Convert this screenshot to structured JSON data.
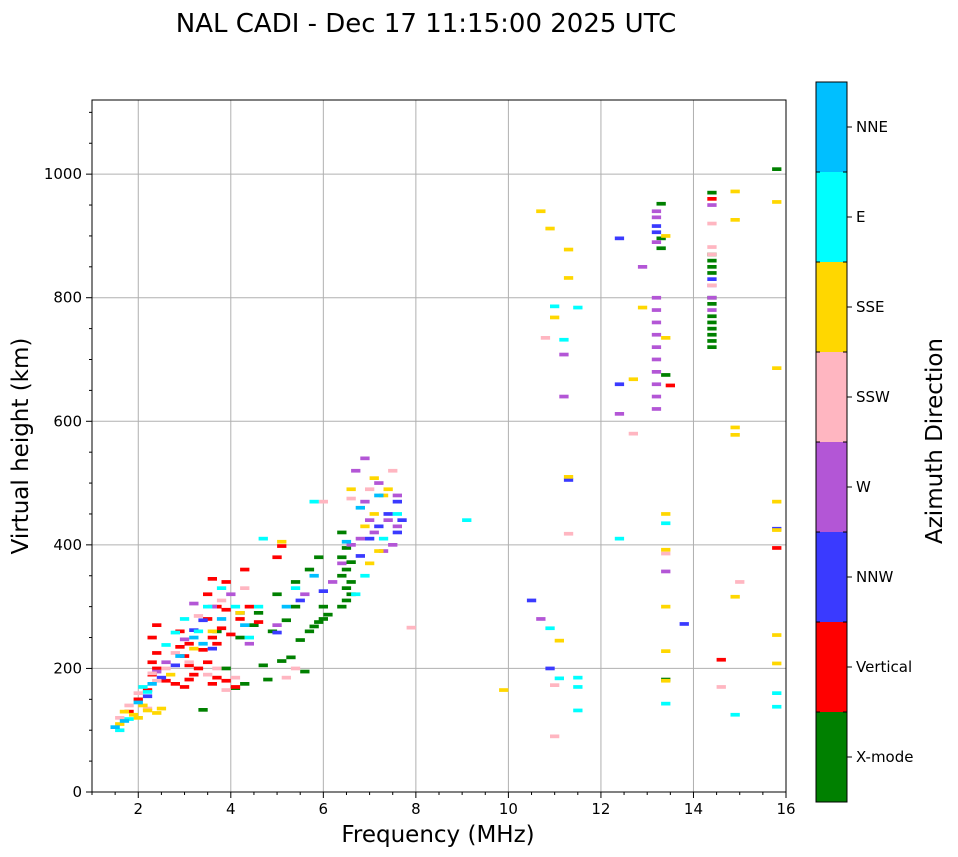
{
  "chart_data": {
    "type": "scatter",
    "title": "NAL CADI - Dec 17 11:15:00 2025 UTC",
    "xlabel": "Frequency (MHz)",
    "ylabel": "Virtual height (km)",
    "xlim": [
      1,
      16
    ],
    "ylim": [
      0,
      1120
    ],
    "xticks": [
      2,
      4,
      6,
      8,
      10,
      12,
      14,
      16
    ],
    "yticks": [
      0,
      200,
      400,
      600,
      800,
      1000
    ],
    "grid": true,
    "colorbar": {
      "label": "Azimuth Direction",
      "categories": [
        "X-mode",
        "Vertical",
        "NNW",
        "W",
        "SSW",
        "SSE",
        "E",
        "NNE"
      ],
      "colors": [
        "#008000",
        "#ff0000",
        "#3a3aff",
        "#b356d6",
        "#ffb6c1",
        "#ffd700",
        "#00ffff",
        "#00bfff"
      ]
    },
    "cell_size": {
      "frequency_mhz": 0.2,
      "height_km": 6
    },
    "series": [
      {
        "name": "X-mode",
        "points": [
          [
            3.4,
            133
          ],
          [
            4.8,
            182
          ],
          [
            5.6,
            195
          ],
          [
            5.3,
            218
          ],
          [
            5.1,
            212
          ],
          [
            4.7,
            205
          ],
          [
            5.5,
            246
          ],
          [
            5.7,
            260
          ],
          [
            5.8,
            268
          ],
          [
            5.9,
            275
          ],
          [
            6.0,
            280
          ],
          [
            6.1,
            287
          ],
          [
            5.4,
            300
          ],
          [
            5.2,
            278
          ],
          [
            4.9,
            260
          ],
          [
            6.4,
            300
          ],
          [
            6.5,
            310
          ],
          [
            6.6,
            320
          ],
          [
            6.5,
            330
          ],
          [
            6.6,
            340
          ],
          [
            6.4,
            350
          ],
          [
            6.5,
            360
          ],
          [
            6.6,
            372
          ],
          [
            6.4,
            380
          ],
          [
            6.5,
            395
          ],
          [
            6.4,
            420
          ],
          [
            4.3,
            175
          ],
          [
            4.1,
            168
          ],
          [
            3.9,
            200
          ],
          [
            4.2,
            250
          ],
          [
            4.5,
            270
          ],
          [
            4.6,
            290
          ],
          [
            5.0,
            320
          ],
          [
            5.4,
            340
          ],
          [
            5.7,
            360
          ],
          [
            5.9,
            380
          ],
          [
            6.0,
            300
          ],
          [
            3.7,
            260
          ],
          [
            13.3,
            952
          ],
          [
            13.3,
            896
          ],
          [
            13.3,
            880
          ],
          [
            13.4,
            675
          ],
          [
            13.4,
            182
          ],
          [
            14.4,
            970
          ],
          [
            14.4,
            870
          ],
          [
            14.4,
            860
          ],
          [
            14.4,
            850
          ],
          [
            14.4,
            840
          ],
          [
            14.4,
            800
          ],
          [
            14.4,
            790
          ],
          [
            14.4,
            770
          ],
          [
            14.4,
            760
          ],
          [
            14.4,
            750
          ],
          [
            14.4,
            740
          ],
          [
            14.4,
            730
          ],
          [
            14.4,
            720
          ],
          [
            15.8,
            1008
          ]
        ]
      },
      {
        "name": "Vertical",
        "points": [
          [
            1.8,
            130
          ],
          [
            2.0,
            150
          ],
          [
            2.2,
            165
          ],
          [
            2.3,
            190
          ],
          [
            2.4,
            200
          ],
          [
            2.3,
            210
          ],
          [
            2.4,
            225
          ],
          [
            2.3,
            250
          ],
          [
            2.4,
            270
          ],
          [
            2.6,
            180
          ],
          [
            2.8,
            175
          ],
          [
            3.0,
            170
          ],
          [
            3.1,
            182
          ],
          [
            3.2,
            190
          ],
          [
            3.1,
            205
          ],
          [
            3.0,
            220
          ],
          [
            2.9,
            235
          ],
          [
            3.1,
            240
          ],
          [
            2.9,
            260
          ],
          [
            3.3,
            200
          ],
          [
            3.5,
            210
          ],
          [
            3.6,
            175
          ],
          [
            3.7,
            185
          ],
          [
            3.9,
            180
          ],
          [
            4.1,
            170
          ],
          [
            3.4,
            230
          ],
          [
            3.6,
            250
          ],
          [
            3.7,
            240
          ],
          [
            3.8,
            265
          ],
          [
            3.5,
            280
          ],
          [
            3.7,
            300
          ],
          [
            3.9,
            295
          ],
          [
            4.0,
            255
          ],
          [
            4.2,
            280
          ],
          [
            3.5,
            320
          ],
          [
            3.6,
            345
          ],
          [
            3.9,
            340
          ],
          [
            4.3,
            360
          ],
          [
            4.4,
            300
          ],
          [
            4.6,
            275
          ],
          [
            5.0,
            380
          ],
          [
            5.1,
            398
          ],
          [
            13.5,
            658
          ],
          [
            14.4,
            960
          ],
          [
            14.6,
            214
          ],
          [
            15.8,
            395
          ]
        ]
      },
      {
        "name": "NNW",
        "points": [
          [
            2.2,
            155
          ],
          [
            2.5,
            185
          ],
          [
            2.8,
            205
          ],
          [
            3.2,
            262
          ],
          [
            3.4,
            278
          ],
          [
            3.6,
            232
          ],
          [
            4.2,
            290
          ],
          [
            5.0,
            258
          ],
          [
            5.5,
            310
          ],
          [
            6.0,
            325
          ],
          [
            6.8,
            382
          ],
          [
            7.0,
            410
          ],
          [
            7.2,
            430
          ],
          [
            7.6,
            420
          ],
          [
            7.7,
            440
          ],
          [
            7.6,
            470
          ],
          [
            7.4,
            450
          ],
          [
            10.5,
            310
          ],
          [
            10.9,
            200
          ],
          [
            11.3,
            505
          ],
          [
            12.4,
            896
          ],
          [
            12.4,
            660
          ],
          [
            13.2,
            916
          ],
          [
            13.2,
            906
          ],
          [
            13.8,
            272
          ],
          [
            14.4,
            830
          ],
          [
            15.8,
            426
          ]
        ]
      },
      {
        "name": "W",
        "points": [
          [
            2.4,
            195
          ],
          [
            2.6,
            210
          ],
          [
            3.0,
            247
          ],
          [
            3.2,
            305
          ],
          [
            3.6,
            300
          ],
          [
            4.0,
            320
          ],
          [
            4.4,
            240
          ],
          [
            5.0,
            270
          ],
          [
            5.6,
            320
          ],
          [
            6.2,
            340
          ],
          [
            6.4,
            370
          ],
          [
            6.6,
            400
          ],
          [
            6.8,
            410
          ],
          [
            7.0,
            440
          ],
          [
            6.9,
            470
          ],
          [
            7.1,
            420
          ],
          [
            7.3,
            390
          ],
          [
            7.5,
            400
          ],
          [
            7.4,
            440
          ],
          [
            7.6,
            430
          ],
          [
            6.7,
            520
          ],
          [
            6.9,
            540
          ],
          [
            7.2,
            500
          ],
          [
            7.6,
            480
          ],
          [
            10.7,
            280
          ],
          [
            11.2,
            708
          ],
          [
            11.2,
            640
          ],
          [
            12.4,
            612
          ],
          [
            12.9,
            850
          ],
          [
            13.2,
            940
          ],
          [
            13.2,
            930
          ],
          [
            13.2,
            890
          ],
          [
            13.2,
            800
          ],
          [
            13.2,
            780
          ],
          [
            13.2,
            760
          ],
          [
            13.2,
            740
          ],
          [
            13.2,
            720
          ],
          [
            13.2,
            700
          ],
          [
            13.2,
            680
          ],
          [
            13.2,
            660
          ],
          [
            13.2,
            640
          ],
          [
            13.2,
            620
          ],
          [
            13.4,
            357
          ],
          [
            14.4,
            800
          ],
          [
            14.4,
            780
          ],
          [
            14.4,
            950
          ],
          [
            14.4,
            820
          ]
        ]
      },
      {
        "name": "SSW",
        "points": [
          [
            1.6,
            120
          ],
          [
            1.8,
            140
          ],
          [
            2.0,
            160
          ],
          [
            2.2,
            135
          ],
          [
            2.4,
            180
          ],
          [
            2.3,
            192
          ],
          [
            2.6,
            200
          ],
          [
            2.8,
            225
          ],
          [
            3.1,
            210
          ],
          [
            3.5,
            190
          ],
          [
            3.7,
            200
          ],
          [
            3.9,
            165
          ],
          [
            4.1,
            185
          ],
          [
            3.3,
            285
          ],
          [
            3.8,
            310
          ],
          [
            4.3,
            330
          ],
          [
            5.2,
            185
          ],
          [
            5.4,
            200
          ],
          [
            6.0,
            470
          ],
          [
            6.6,
            475
          ],
          [
            7.0,
            490
          ],
          [
            7.5,
            520
          ],
          [
            7.9,
            266
          ],
          [
            10.8,
            735
          ],
          [
            11.0,
            173
          ],
          [
            11.0,
            90
          ],
          [
            11.3,
            418
          ],
          [
            12.7,
            580
          ],
          [
            13.4,
            386
          ],
          [
            14.4,
            920
          ],
          [
            14.4,
            882
          ],
          [
            14.4,
            870
          ],
          [
            14.4,
            820
          ],
          [
            14.6,
            170
          ],
          [
            15.0,
            340
          ]
        ]
      },
      {
        "name": "SSE",
        "points": [
          [
            1.6,
            110
          ],
          [
            1.7,
            130
          ],
          [
            1.9,
            125
          ],
          [
            2.1,
            140
          ],
          [
            2.0,
            120
          ],
          [
            2.2,
            132
          ],
          [
            2.4,
            128
          ],
          [
            2.5,
            135
          ],
          [
            2.7,
            190
          ],
          [
            3.2,
            232
          ],
          [
            3.6,
            260
          ],
          [
            4.2,
            290
          ],
          [
            5.1,
            405
          ],
          [
            6.6,
            490
          ],
          [
            7.0,
            370
          ],
          [
            7.2,
            390
          ],
          [
            6.9,
            430
          ],
          [
            7.1,
            450
          ],
          [
            7.3,
            480
          ],
          [
            7.1,
            508
          ],
          [
            7.4,
            490
          ],
          [
            9.9,
            165
          ],
          [
            10.7,
            940
          ],
          [
            10.9,
            912
          ],
          [
            11.0,
            768
          ],
          [
            11.1,
            245
          ],
          [
            11.3,
            878
          ],
          [
            11.3,
            832
          ],
          [
            11.3,
            510
          ],
          [
            12.7,
            668
          ],
          [
            12.9,
            784
          ],
          [
            13.4,
            900
          ],
          [
            13.4,
            735
          ],
          [
            13.4,
            450
          ],
          [
            13.4,
            392
          ],
          [
            13.4,
            300
          ],
          [
            13.4,
            228
          ],
          [
            13.4,
            180
          ],
          [
            14.9,
            972
          ],
          [
            14.9,
            926
          ],
          [
            14.9,
            590
          ],
          [
            14.9,
            578
          ],
          [
            14.9,
            316
          ],
          [
            15.8,
            955
          ],
          [
            15.8,
            686
          ],
          [
            15.8,
            470
          ],
          [
            15.8,
            424
          ],
          [
            15.8,
            254
          ],
          [
            15.8,
            208
          ]
        ]
      },
      {
        "name": "E",
        "points": [
          [
            1.6,
            100
          ],
          [
            1.8,
            118
          ],
          [
            2.1,
            170
          ],
          [
            2.2,
            162
          ],
          [
            2.6,
            238
          ],
          [
            2.8,
            258
          ],
          [
            3.0,
            280
          ],
          [
            3.3,
            260
          ],
          [
            3.5,
            300
          ],
          [
            3.8,
            330
          ],
          [
            4.1,
            300
          ],
          [
            4.4,
            250
          ],
          [
            4.6,
            300
          ],
          [
            4.7,
            410
          ],
          [
            5.4,
            330
          ],
          [
            5.8,
            470
          ],
          [
            6.7,
            320
          ],
          [
            6.9,
            350
          ],
          [
            7.3,
            410
          ],
          [
            7.6,
            450
          ],
          [
            9.1,
            440
          ],
          [
            10.9,
            265
          ],
          [
            11.0,
            786
          ],
          [
            11.1,
            184
          ],
          [
            11.2,
            732
          ],
          [
            11.5,
            784
          ],
          [
            11.5,
            185
          ],
          [
            11.5,
            170
          ],
          [
            11.5,
            132
          ],
          [
            12.4,
            410
          ],
          [
            13.4,
            435
          ],
          [
            13.4,
            143
          ],
          [
            14.9,
            125
          ],
          [
            15.8,
            160
          ],
          [
            15.8,
            138
          ]
        ]
      },
      {
        "name": "NNE",
        "points": [
          [
            1.5,
            105
          ],
          [
            1.7,
            115
          ],
          [
            2.0,
            145
          ],
          [
            2.3,
            175
          ],
          [
            2.9,
            220
          ],
          [
            3.2,
            250
          ],
          [
            3.4,
            240
          ],
          [
            3.8,
            280
          ],
          [
            4.3,
            270
          ],
          [
            5.2,
            300
          ],
          [
            5.8,
            350
          ],
          [
            6.5,
            405
          ],
          [
            6.8,
            460
          ],
          [
            7.2,
            480
          ]
        ]
      }
    ]
  }
}
